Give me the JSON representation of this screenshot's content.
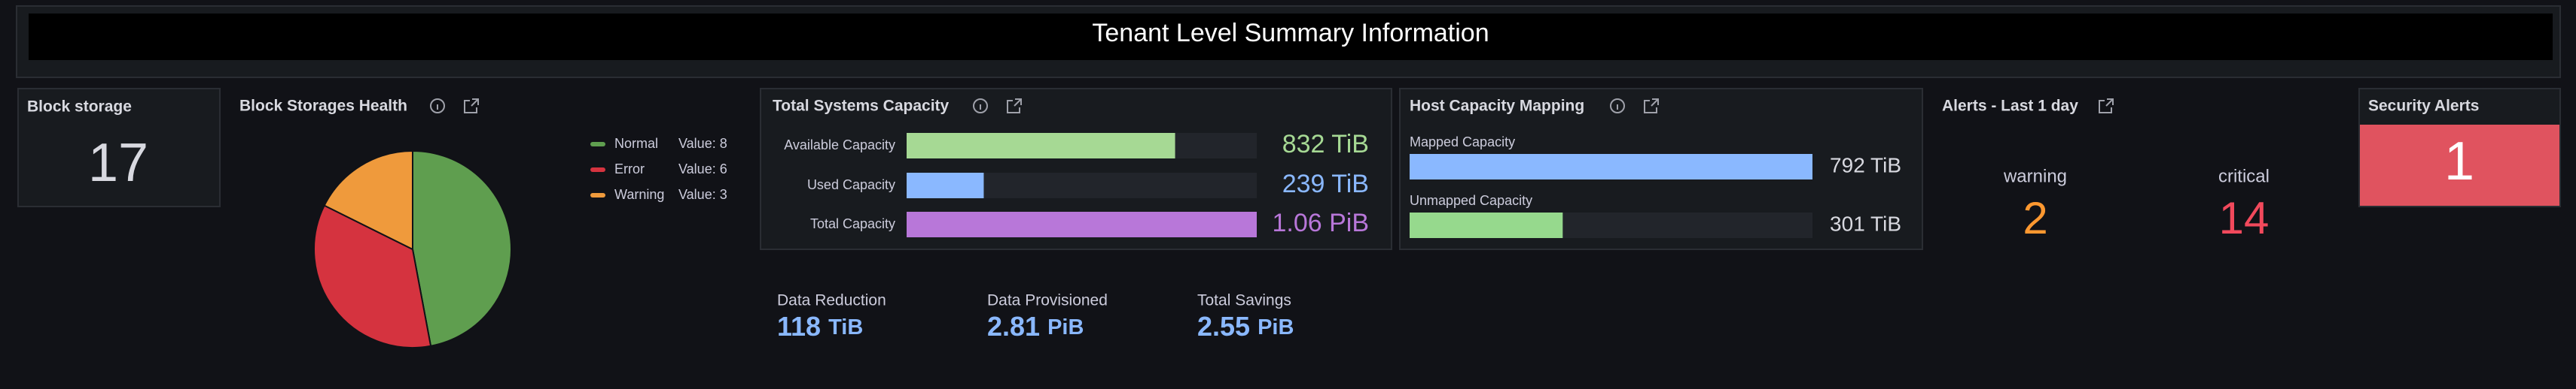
{
  "header": {
    "title": "Tenant Level Summary Information"
  },
  "block_storage": {
    "title": "Block storage",
    "value": 17
  },
  "chart_data": [
    {
      "type": "pie",
      "title": "Block Storages Health",
      "categories": [
        "Normal",
        "Error",
        "Warning"
      ],
      "values": [
        8,
        6,
        3
      ],
      "value_labels": [
        "Value: 8",
        "Value: 6",
        "Value: 3"
      ],
      "colors": [
        "#5f9e4f",
        "#d5333f",
        "#ef9a3c"
      ]
    },
    {
      "type": "bargauge",
      "title": "Total Systems Capacity",
      "categories": [
        "Available Capacity",
        "Used Capacity",
        "Total Capacity"
      ],
      "values": [
        832,
        239,
        1085
      ],
      "value_labels": [
        "832 TiB",
        "239 TiB",
        "1.06 PiB"
      ],
      "colors": [
        "#a6d994",
        "#8ab8ff",
        "#b877d9"
      ],
      "xlim": [
        0,
        1085
      ]
    },
    {
      "type": "bargauge",
      "title": "Host Capacity Mapping",
      "categories": [
        "Mapped Capacity",
        "Unmapped Capacity"
      ],
      "values": [
        792,
        301
      ],
      "value_labels": [
        "792 TiB",
        "301 TiB"
      ],
      "colors": [
        "#8ab8ff",
        "#96d98d"
      ],
      "xlim": [
        0,
        792
      ]
    }
  ],
  "stats": [
    {
      "label": "Data Reduction",
      "value": 118,
      "unit": "TiB"
    },
    {
      "label": "Data Provisioned",
      "value": 2.81,
      "unit": "PiB"
    },
    {
      "label": "Total Savings",
      "value": 2.55,
      "unit": "PiB"
    }
  ],
  "alerts": {
    "title": "Alerts - Last 1 day",
    "items": [
      {
        "label": "warning",
        "value": 2,
        "color": "#ff9830"
      },
      {
        "label": "critical",
        "value": 14,
        "color": "#f2495c"
      }
    ]
  },
  "security_alerts": {
    "title": "Security Alerts",
    "value": 1,
    "color": "#e0535f"
  }
}
